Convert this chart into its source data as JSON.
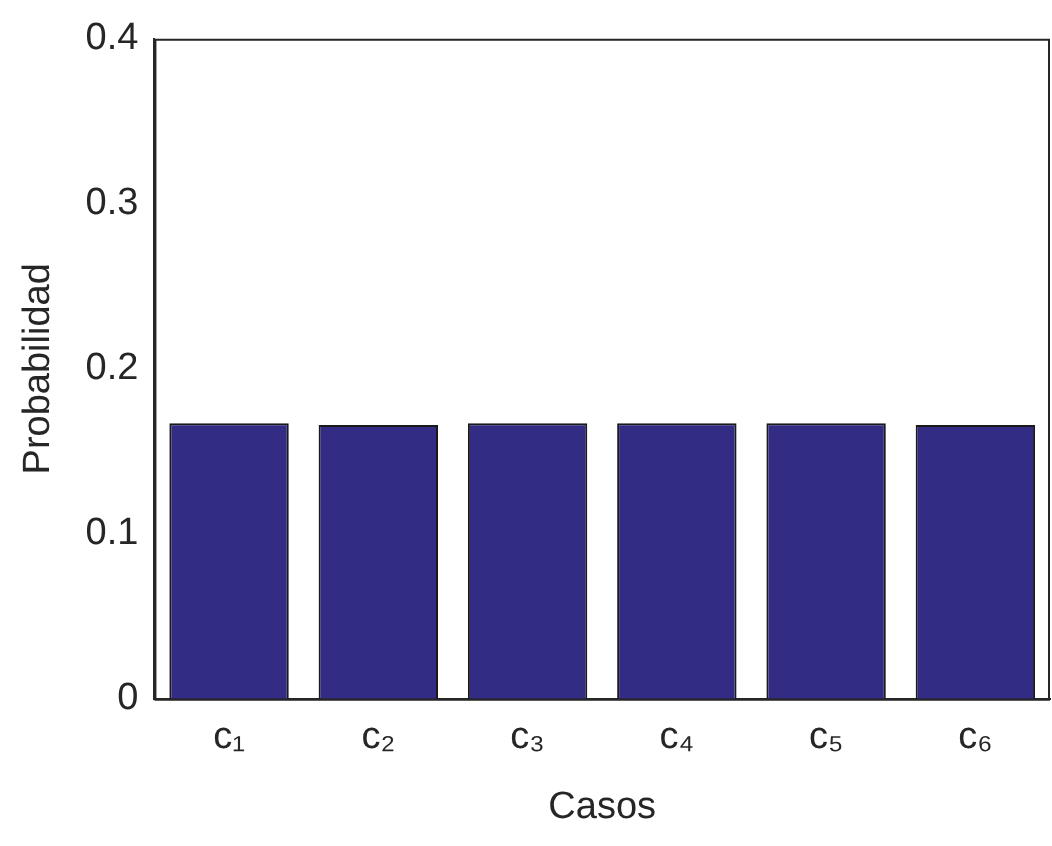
{
  "chart_data": {
    "type": "bar",
    "xlabel": "Casos",
    "ylabel": "Probabilidad",
    "categories": [
      "c₁",
      "c₂",
      "c₃",
      "c₄",
      "c₅",
      "c₆"
    ],
    "values": [
      0.167,
      0.166,
      0.167,
      0.167,
      0.167,
      0.166
    ],
    "color": "#332c85",
    "ylim": [
      0,
      0.4
    ],
    "yticks": [
      0,
      0.1,
      0.2,
      0.3,
      0.4
    ],
    "grid": false,
    "legend": false
  }
}
